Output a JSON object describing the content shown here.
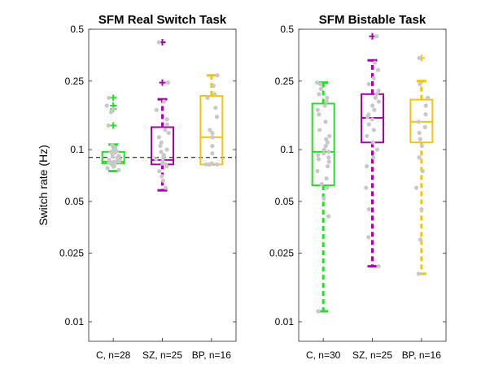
{
  "chart_data": [
    {
      "type": "box",
      "title": "SFM Real Switch Task",
      "ylabel": "Switch rate (Hz)",
      "yscale": "log",
      "ylim": [
        0.0077,
        0.5
      ],
      "yticks": [
        0.01,
        0.025,
        0.05,
        0.1,
        0.25,
        0.5
      ],
      "ytick_labels": [
        "0.01",
        "0.025",
        "0.05",
        "0.1",
        "0.25",
        "0.5"
      ],
      "reference_line": 0.09,
      "categories": [
        "C, n=28",
        "SZ, n=25",
        "BP, n=16"
      ],
      "groups": [
        {
          "label": "C, n=28",
          "color": "#22e022",
          "whisker_low": 0.075,
          "q1": 0.083,
          "median": 0.085,
          "q3": 0.097,
          "whisker_high": 0.107,
          "outliers": [
            0.138,
            0.172,
            0.18,
            0.2
          ],
          "points": [
            0.076,
            0.078,
            0.08,
            0.082,
            0.083,
            0.083,
            0.084,
            0.084,
            0.085,
            0.085,
            0.086,
            0.087,
            0.088,
            0.09,
            0.091,
            0.092,
            0.094,
            0.096,
            0.097,
            0.098,
            0.1,
            0.103,
            0.106,
            0.138,
            0.165,
            0.172,
            0.18,
            0.2
          ]
        },
        {
          "label": "SZ, n=25",
          "color": "#aa00aa",
          "whisker_low": 0.058,
          "q1": 0.082,
          "median": 0.087,
          "q3": 0.135,
          "whisker_high": 0.196,
          "outliers": [
            0.245,
            0.42
          ],
          "points": [
            0.06,
            0.066,
            0.07,
            0.075,
            0.08,
            0.082,
            0.083,
            0.085,
            0.086,
            0.088,
            0.09,
            0.093,
            0.097,
            0.1,
            0.105,
            0.11,
            0.118,
            0.125,
            0.13,
            0.14,
            0.15,
            0.17,
            0.19,
            0.245,
            0.42
          ]
        },
        {
          "label": "BP, n=16",
          "color": "#f2c40e",
          "whisker_low": 0.082,
          "q1": 0.082,
          "median": 0.118,
          "q3": 0.205,
          "whisker_high": 0.27,
          "outliers": [],
          "points": [
            0.082,
            0.082,
            0.082,
            0.082,
            0.083,
            0.095,
            0.105,
            0.118,
            0.125,
            0.13,
            0.155,
            0.175,
            0.2,
            0.21,
            0.235,
            0.27
          ]
        }
      ]
    },
    {
      "type": "box",
      "title": "SFM Bistable Task",
      "ylabel": "",
      "yscale": "log",
      "ylim": [
        0.0077,
        0.5
      ],
      "yticks": [
        0.01,
        0.025,
        0.05,
        0.1,
        0.25,
        0.5
      ],
      "ytick_labels": [
        "0.01",
        "0.025",
        "0.05",
        "0.1",
        "0.25",
        "0.5"
      ],
      "categories": [
        "C, n=30",
        "SZ, n=25",
        "BP, n=16"
      ],
      "groups": [
        {
          "label": "C, n=30",
          "color": "#22e022",
          "whisker_low": 0.0115,
          "q1": 0.062,
          "median": 0.097,
          "q3": 0.185,
          "whisker_high": 0.245,
          "outliers": [],
          "points": [
            0.0115,
            0.041,
            0.052,
            0.06,
            0.063,
            0.068,
            0.075,
            0.08,
            0.085,
            0.088,
            0.09,
            0.093,
            0.095,
            0.097,
            0.1,
            0.105,
            0.11,
            0.115,
            0.12,
            0.13,
            0.145,
            0.16,
            0.17,
            0.18,
            0.19,
            0.2,
            0.21,
            0.225,
            0.24,
            0.245
          ]
        },
        {
          "label": "SZ, n=25",
          "color": "#aa00aa",
          "whisker_low": 0.021,
          "q1": 0.11,
          "median": 0.153,
          "q3": 0.21,
          "whisker_high": 0.33,
          "outliers": [
            0.455
          ],
          "points": [
            0.021,
            0.031,
            0.045,
            0.06,
            0.08,
            0.09,
            0.1,
            0.11,
            0.12,
            0.13,
            0.14,
            0.15,
            0.155,
            0.16,
            0.17,
            0.18,
            0.19,
            0.2,
            0.21,
            0.22,
            0.24,
            0.26,
            0.29,
            0.32,
            0.455
          ]
        },
        {
          "label": "BP, n=16",
          "color": "#f2c40e",
          "whisker_low": 0.019,
          "q1": 0.11,
          "median": 0.145,
          "q3": 0.195,
          "whisker_high": 0.25,
          "outliers": [
            0.34
          ],
          "points": [
            0.019,
            0.03,
            0.045,
            0.06,
            0.075,
            0.09,
            0.105,
            0.115,
            0.125,
            0.135,
            0.145,
            0.16,
            0.18,
            0.2,
            0.24,
            0.34
          ]
        }
      ]
    }
  ]
}
